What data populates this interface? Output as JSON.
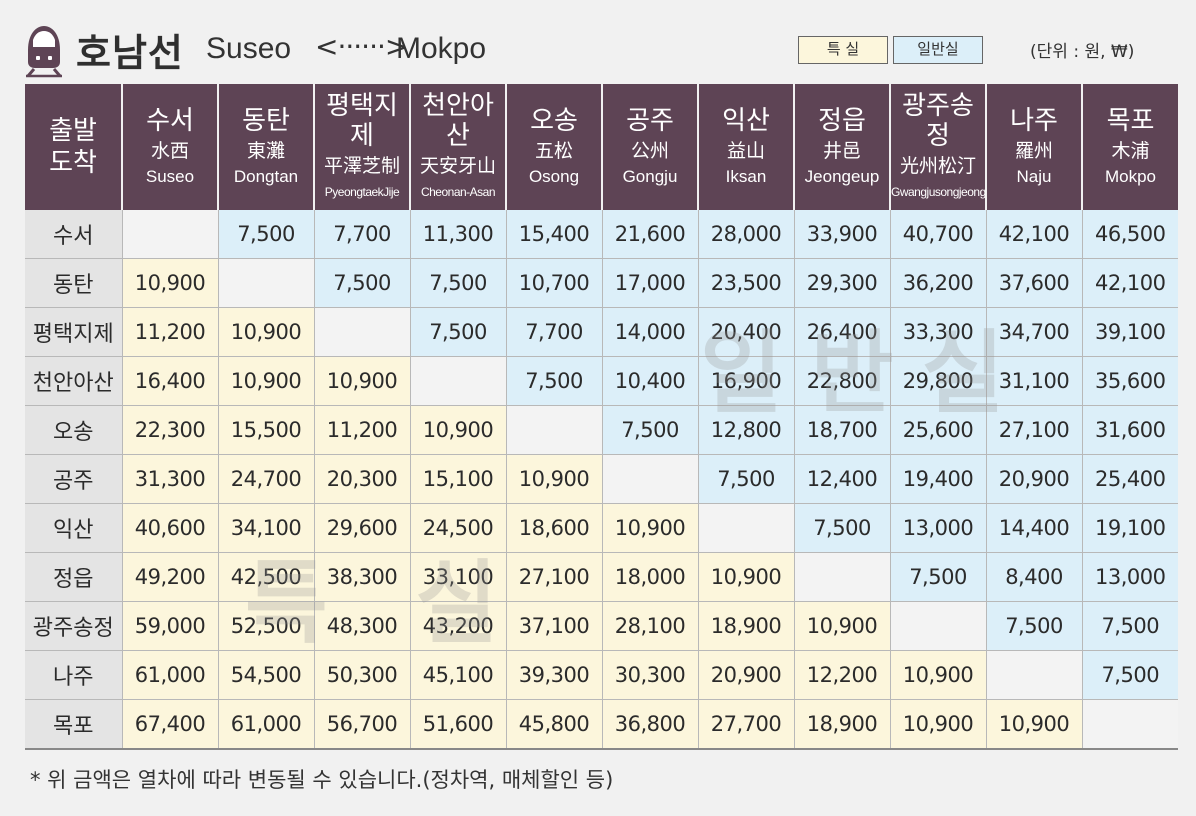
{
  "header": {
    "title_ko": "호남선",
    "origin_en": "Suseo",
    "arrow": "<······>",
    "destination_en": "Mokpo",
    "legend_special": "특 실",
    "legend_general": "일반실",
    "unit_note": "(단위 : 원, ₩)"
  },
  "colors": {
    "header_bg": "#5e4455",
    "special_bg": "#fcf6dc",
    "general_bg": "#dceff9",
    "row_label_bg": "#e4e4e4"
  },
  "table": {
    "corner_line1": "출발",
    "corner_line2": "도착",
    "columns": [
      {
        "ko": "수서",
        "hanja": "水西",
        "en": "Suseo"
      },
      {
        "ko": "동탄",
        "hanja": "東灘",
        "en": "Dongtan"
      },
      {
        "ko": "평택지제",
        "hanja": "平澤芝制",
        "en": "PyeongtaekJije"
      },
      {
        "ko": "천안아산",
        "hanja": "天安牙山",
        "en": "Cheonan-Asan"
      },
      {
        "ko": "오송",
        "hanja": "五松",
        "en": "Osong"
      },
      {
        "ko": "공주",
        "hanja": "公州",
        "en": "Gongju"
      },
      {
        "ko": "익산",
        "hanja": "益山",
        "en": "Iksan"
      },
      {
        "ko": "정읍",
        "hanja": "井邑",
        "en": "Jeongeup"
      },
      {
        "ko": "광주송정",
        "hanja": "光州松汀",
        "en": "Gwangjusongjeong"
      },
      {
        "ko": "나주",
        "hanja": "羅州",
        "en": "Naju"
      },
      {
        "ko": "목포",
        "hanja": "木浦",
        "en": "Mokpo"
      }
    ],
    "rows": [
      {
        "label": "수서",
        "cells": [
          "",
          "7,500",
          "7,700",
          "11,300",
          "15,400",
          "21,600",
          "28,000",
          "33,900",
          "40,700",
          "42,100",
          "46,500"
        ]
      },
      {
        "label": "동탄",
        "cells": [
          "10,900",
          "",
          "7,500",
          "7,500",
          "10,700",
          "17,000",
          "23,500",
          "29,300",
          "36,200",
          "37,600",
          "42,100"
        ]
      },
      {
        "label": "평택지제",
        "cells": [
          "11,200",
          "10,900",
          "",
          "7,500",
          "7,700",
          "14,000",
          "20,400",
          "26,400",
          "33,300",
          "34,700",
          "39,100"
        ]
      },
      {
        "label": "천안아산",
        "cells": [
          "16,400",
          "10,900",
          "10,900",
          "",
          "7,500",
          "10,400",
          "16,900",
          "22,800",
          "29,800",
          "31,100",
          "35,600"
        ]
      },
      {
        "label": "오송",
        "cells": [
          "22,300",
          "15,500",
          "11,200",
          "10,900",
          "",
          "7,500",
          "12,800",
          "18,700",
          "25,600",
          "27,100",
          "31,600"
        ]
      },
      {
        "label": "공주",
        "cells": [
          "31,300",
          "24,700",
          "20,300",
          "15,100",
          "10,900",
          "",
          "7,500",
          "12,400",
          "19,400",
          "20,900",
          "25,400"
        ]
      },
      {
        "label": "익산",
        "cells": [
          "40,600",
          "34,100",
          "29,600",
          "24,500",
          "18,600",
          "10,900",
          "",
          "7,500",
          "13,000",
          "14,400",
          "19,100"
        ]
      },
      {
        "label": "정읍",
        "cells": [
          "49,200",
          "42,500",
          "38,300",
          "33,100",
          "27,100",
          "18,000",
          "10,900",
          "",
          "7,500",
          "8,400",
          "13,000"
        ]
      },
      {
        "label": "광주송정",
        "cells": [
          "59,000",
          "52,500",
          "48,300",
          "43,200",
          "37,100",
          "28,100",
          "18,900",
          "10,900",
          "",
          "7,500",
          "7,500"
        ]
      },
      {
        "label": "나주",
        "cells": [
          "61,000",
          "54,500",
          "50,300",
          "45,100",
          "39,300",
          "30,300",
          "20,900",
          "12,200",
          "10,900",
          "",
          "7,500"
        ]
      },
      {
        "label": "목포",
        "cells": [
          "67,400",
          "61,000",
          "56,700",
          "51,600",
          "45,800",
          "36,800",
          "27,700",
          "18,900",
          "10,900",
          "10,900",
          ""
        ]
      }
    ]
  },
  "watermarks": {
    "general": "일반실",
    "special": "특 실"
  },
  "footnote": "* 위 금액은 열차에 따라 변동될 수 있습니다.(정차역, 매체할인 등)"
}
